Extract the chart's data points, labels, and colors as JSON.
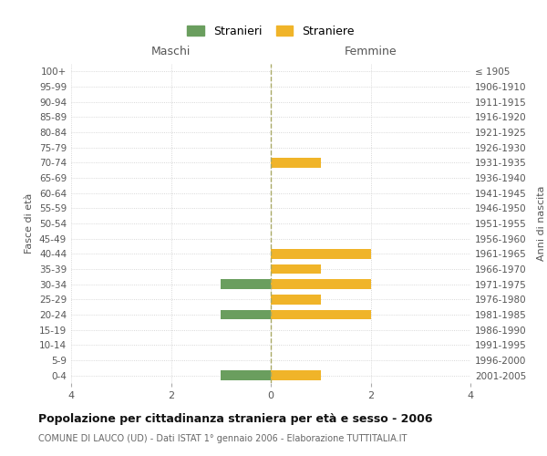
{
  "age_groups": [
    "100+",
    "95-99",
    "90-94",
    "85-89",
    "80-84",
    "75-79",
    "70-74",
    "65-69",
    "60-64",
    "55-59",
    "50-54",
    "45-49",
    "40-44",
    "35-39",
    "30-34",
    "25-29",
    "20-24",
    "15-19",
    "10-14",
    "5-9",
    "0-4"
  ],
  "birth_years": [
    "≤ 1905",
    "1906-1910",
    "1911-1915",
    "1916-1920",
    "1921-1925",
    "1926-1930",
    "1931-1935",
    "1936-1940",
    "1941-1945",
    "1946-1950",
    "1951-1955",
    "1956-1960",
    "1961-1965",
    "1966-1970",
    "1971-1975",
    "1976-1980",
    "1981-1985",
    "1986-1990",
    "1991-1995",
    "1996-2000",
    "2001-2005"
  ],
  "maschi": [
    0,
    0,
    0,
    0,
    0,
    0,
    0,
    0,
    0,
    0,
    0,
    0,
    0,
    0,
    1,
    0,
    1,
    0,
    0,
    0,
    1
  ],
  "femmine": [
    0,
    0,
    0,
    0,
    0,
    0,
    1,
    0,
    0,
    0,
    0,
    0,
    2,
    1,
    2,
    1,
    2,
    0,
    0,
    0,
    1
  ],
  "color_maschi": "#6a9e5e",
  "color_femmine": "#f0b429",
  "title": "Popolazione per cittadinanza straniera per età e sesso - 2006",
  "subtitle": "COMUNE DI LAUCO (UD) - Dati ISTAT 1° gennaio 2006 - Elaborazione TUTTITALIA.IT",
  "xlabel_left": "Maschi",
  "xlabel_right": "Femmine",
  "ylabel_left": "Fasce di età",
  "ylabel_right": "Anni di nascita",
  "legend_maschi": "Stranieri",
  "legend_femmine": "Straniere",
  "xlim": 4,
  "background_color": "#ffffff",
  "grid_color": "#cccccc"
}
